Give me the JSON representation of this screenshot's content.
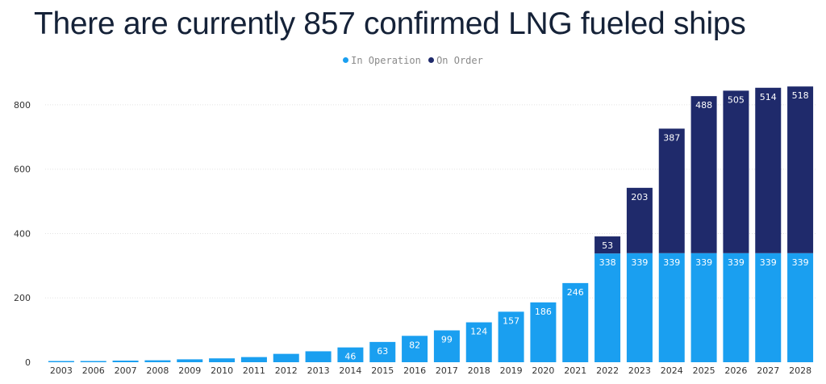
{
  "colors": {
    "in_operation": "#1a9ff0",
    "on_order": "#1f2a6b",
    "grid": "#e3e3e3",
    "title": "#152238"
  },
  "chart_data": {
    "type": "bar",
    "stacked": true,
    "title": "There are currently 857 confirmed LNG fueled ships",
    "xlabel": "",
    "ylabel": "",
    "ylim": [
      0,
      860
    ],
    "yticks": [
      0,
      200,
      400,
      600,
      800
    ],
    "grid": true,
    "legend_position": "top-center",
    "categories": [
      "2003",
      "2006",
      "2007",
      "2008",
      "2009",
      "2010",
      "2011",
      "2012",
      "2013",
      "2014",
      "2015",
      "2016",
      "2017",
      "2018",
      "2019",
      "2020",
      "2021",
      "2022",
      "2023",
      "2024",
      "2025",
      "2026",
      "2027",
      "2028"
    ],
    "series": [
      {
        "name": "In Operation",
        "color": "#1a9ff0",
        "values": [
          1,
          2,
          5,
          6,
          9,
          12,
          16,
          26,
          34,
          46,
          63,
          82,
          99,
          124,
          157,
          186,
          246,
          338,
          339,
          339,
          339,
          339,
          339,
          339
        ],
        "labels": [
          "",
          "",
          "",
          "",
          "",
          "",
          "",
          "",
          "",
          "46",
          "63",
          "82",
          "99",
          "124",
          "157",
          "186",
          "246",
          "338",
          "339",
          "339",
          "339",
          "339",
          "339",
          "339"
        ]
      },
      {
        "name": "On Order",
        "color": "#1f2a6b",
        "values": [
          0,
          0,
          0,
          0,
          0,
          0,
          0,
          0,
          0,
          0,
          0,
          0,
          0,
          0,
          0,
          0,
          0,
          53,
          203,
          387,
          488,
          505,
          514,
          518
        ],
        "labels": [
          "",
          "",
          "",
          "",
          "",
          "",
          "",
          "",
          "",
          "",
          "",
          "",
          "",
          "",
          "",
          "",
          "",
          "53",
          "203",
          "387",
          "488",
          "505",
          "514",
          "518"
        ]
      }
    ]
  }
}
